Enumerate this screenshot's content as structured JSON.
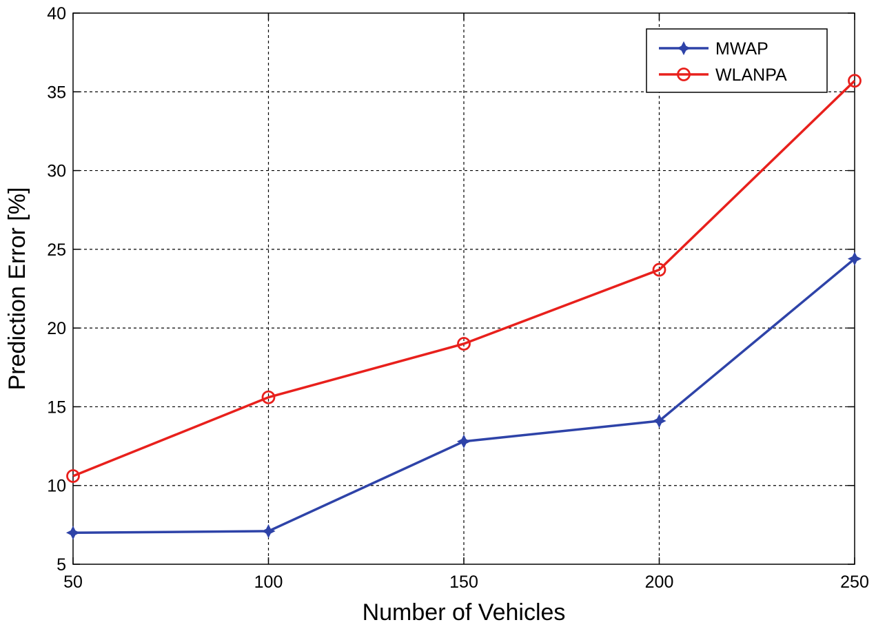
{
  "chart_data": {
    "type": "line",
    "title": "",
    "xlabel": "Number of Vehicles",
    "ylabel": "Prediction Error [%]",
    "x": [
      50,
      100,
      150,
      200,
      250
    ],
    "xlim": [
      50,
      250
    ],
    "ylim": [
      5,
      40
    ],
    "xticks": [
      "50",
      "100",
      "150",
      "200",
      "250"
    ],
    "yticks": [
      "5",
      "10",
      "15",
      "20",
      "25",
      "30",
      "35",
      "40"
    ],
    "grid": true,
    "grid_style": "dashed",
    "legend_position": "top-right",
    "series": [
      {
        "name": "MWAP",
        "color": "#2e43a8",
        "marker": "star",
        "values": [
          7.0,
          7.1,
          12.8,
          14.1,
          24.4
        ]
      },
      {
        "name": "WLANPA",
        "color": "#e8201c",
        "marker": "circle",
        "values": [
          10.6,
          15.6,
          19.0,
          23.7,
          35.7
        ]
      }
    ]
  }
}
